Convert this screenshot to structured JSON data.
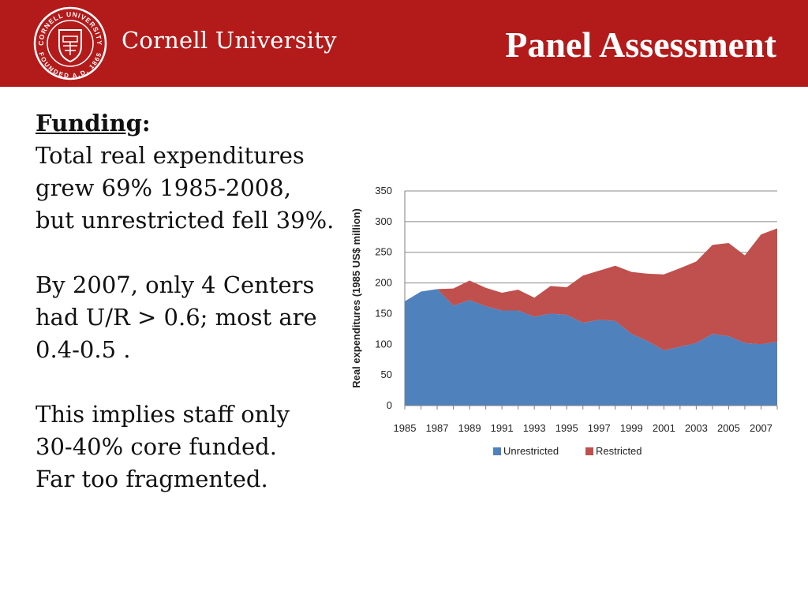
{
  "header": {
    "brand": "Cornell University",
    "title": "Panel Assessment",
    "seal_text_top": "CORNELL UNIVERSITY",
    "seal_text_bottom": "FOUNDED A.D. 1865",
    "colors": {
      "bar": "#b31b1b",
      "text": "#ffffff"
    }
  },
  "body": {
    "heading": "Funding",
    "heading_suffix": ":",
    "para1": [
      "Total real expenditures",
      "grew 69% 1985-2008,",
      "but unrestricted fell 39%."
    ],
    "para2": [
      "By 2007, only 4 Centers",
      "had U/R > 0.6; most are",
      "0.4-0.5 ."
    ],
    "para3": [
      "This implies staff only",
      "30-40% core funded.",
      "Far too fragmented."
    ]
  },
  "chart_data": {
    "type": "area",
    "stacked": true,
    "x": [
      1985,
      1986,
      1987,
      1988,
      1989,
      1990,
      1991,
      1992,
      1993,
      1994,
      1995,
      1996,
      1997,
      1998,
      1999,
      2000,
      2001,
      2002,
      2003,
      2004,
      2005,
      2006,
      2007,
      2008
    ],
    "series": [
      {
        "name": "Unrestricted",
        "color": "#4f81bd",
        "values": [
          170,
          186,
          190,
          163,
          172,
          162,
          155,
          155,
          145,
          150,
          148,
          135,
          140,
          138,
          117,
          105,
          90,
          96,
          102,
          117,
          113,
          102,
          100,
          104
        ]
      },
      {
        "name": "Restricted",
        "color": "#c0504d",
        "values": [
          0,
          0,
          0,
          28,
          32,
          30,
          29,
          34,
          31,
          45,
          45,
          77,
          80,
          90,
          101,
          110,
          124,
          128,
          133,
          145,
          152,
          143,
          179,
          185
        ]
      }
    ],
    "title": "",
    "xlabel": "",
    "ylabel": "Real expenditures (1985 US$ million)",
    "ylim": [
      0,
      350
    ],
    "yticks": [
      0,
      50,
      100,
      150,
      200,
      250,
      300,
      350
    ],
    "xtick_labels": [
      "1985",
      "1987",
      "1989",
      "1991",
      "1993",
      "1995",
      "1997",
      "1999",
      "2001",
      "2003",
      "2005",
      "2007"
    ],
    "grid": true,
    "legend": {
      "position": "bottom",
      "entries": [
        "Unrestricted",
        "Restricted"
      ]
    }
  }
}
